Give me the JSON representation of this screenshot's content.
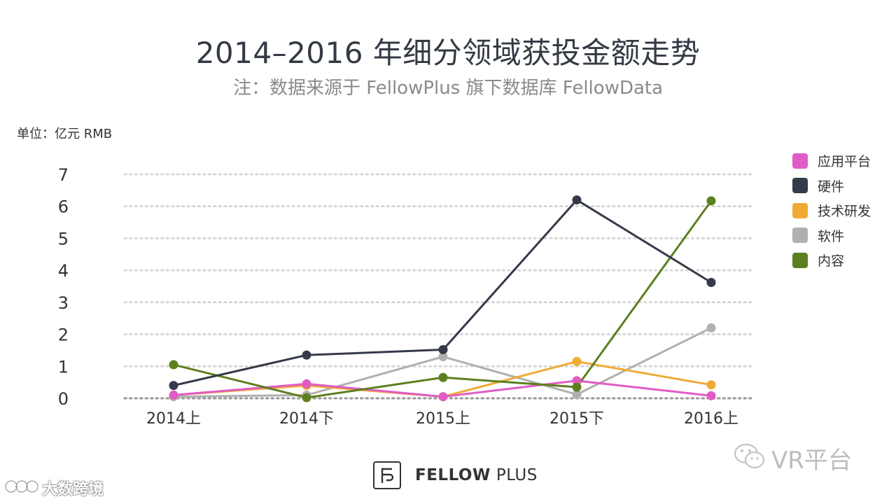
{
  "chart_data": {
    "type": "line",
    "title": "2014–2016 年细分领域获投金额走势",
    "subtitle": "注：数据来源于 FellowPlus 旗下数据库 FellowData",
    "unit_label": "单位：亿元 RMB",
    "x": [
      "2014上",
      "2014下",
      "2015上",
      "2015下",
      "2016上"
    ],
    "y_ticks": [
      "0",
      "1",
      "2",
      "3",
      "4",
      "5",
      "6",
      "7"
    ],
    "ylim": [
      0,
      7
    ],
    "grid": true,
    "legend_position": "right",
    "series": [
      {
        "name": "应用平台",
        "color": "#e05cc4",
        "values": [
          0.1,
          0.45,
          0.05,
          0.55,
          0.08
        ]
      },
      {
        "name": "硬件",
        "color": "#353a4a",
        "values": [
          0.4,
          1.35,
          1.52,
          6.2,
          3.62
        ]
      },
      {
        "name": "技术研发",
        "color": "#f0aa34",
        "values": [
          0.1,
          0.4,
          0.05,
          1.15,
          0.42
        ]
      },
      {
        "name": "软件",
        "color": "#b0b0b0",
        "values": [
          0.05,
          0.1,
          1.3,
          0.12,
          2.2
        ]
      },
      {
        "name": "内容",
        "color": "#5d7f1f",
        "values": [
          1.05,
          0.02,
          0.65,
          0.35,
          6.17
        ]
      }
    ]
  },
  "brand": {
    "name": "FELLOW",
    "suffix": "PLUS"
  },
  "watermarks": {
    "right": "VR平台",
    "left": "大数跨境"
  }
}
